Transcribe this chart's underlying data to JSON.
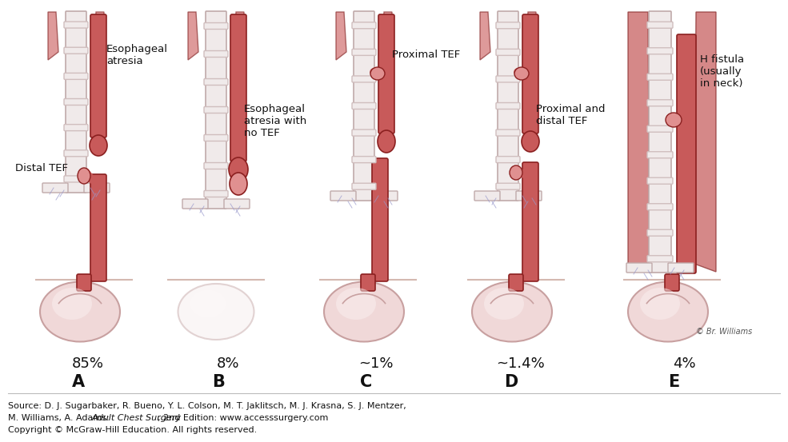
{
  "background_color": "#ffffff",
  "panels": [
    "A",
    "B",
    "C",
    "D",
    "E"
  ],
  "percentages": [
    "85%",
    "8%",
    "~1%",
    "~1.4%",
    "4%"
  ],
  "label_A1": "Esophageal\natresia",
  "label_A2": "Distal TEF",
  "label_B": "Esophageal\natresia with\nno TEF",
  "label_C": "Proximal TEF",
  "label_D": "Proximal and\ndistal TEF",
  "label_E": "H fistula\n(usually\nin neck)",
  "source_line1": "Source: D. J. Sugarbaker, R. Bueno, Y. L. Colson, M. T. Jaklitsch, M. J. Krasna, S. J. Mentzer,",
  "source_line2_pre": "M. Williams, A. Adams: ",
  "source_italic": "Adult Chest Surgery",
  "source_line2_post": ", 2nd Edition: www.accesssurgery.com",
  "source_line3": "Copyright © McGraw-Hill Education. All rights reserved.",
  "trachea_fill": "#f0eaea",
  "trachea_ring": "#d4c4c4",
  "trachea_edge": "#c8b4b4",
  "esoph_fill": "#c85a5a",
  "esoph_edge": "#8b2020",
  "esoph_light": "#e09090",
  "muscle_fill": "#c86060",
  "stomach_fill": "#f0d8d8",
  "stomach_edge": "#c8a0a0",
  "skin_line": "#d4b8b0",
  "fig_width": 9.85,
  "fig_height": 5.53,
  "dpi": 100
}
